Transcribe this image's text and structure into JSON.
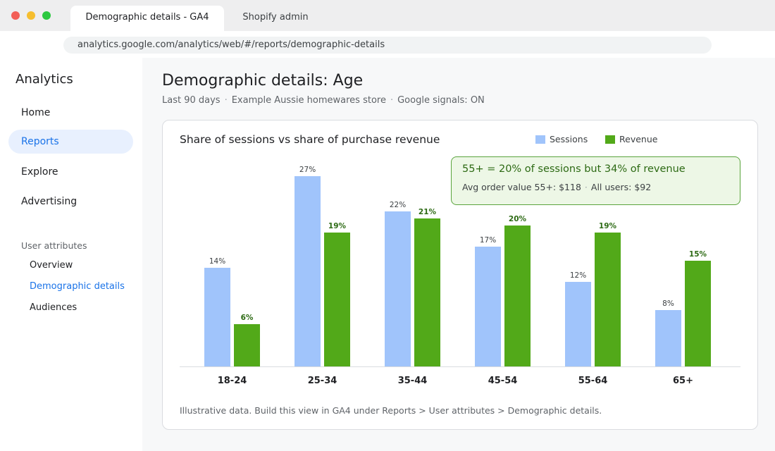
{
  "browser": {
    "tabs": [
      {
        "label": "Demographic details - GA4",
        "active": true
      },
      {
        "label": "Shopify admin",
        "active": false
      }
    ],
    "url": "analytics.google.com/analytics/web/#/reports/demographic-details"
  },
  "sidebar": {
    "brand": "Analytics",
    "nav": [
      {
        "label": "Home"
      },
      {
        "label": "Reports",
        "selected": true
      },
      {
        "label": "Explore"
      },
      {
        "label": "Advertising"
      }
    ],
    "section_title": "User attributes",
    "subnav": [
      {
        "label": "Overview"
      },
      {
        "label": "Demographic details",
        "selected": true
      },
      {
        "label": "Audiences"
      }
    ]
  },
  "page": {
    "title": "Demographic details: Age",
    "meta": [
      "Last 90 days",
      "Example Aussie homewares store",
      "Google signals: ON"
    ],
    "separator": "·"
  },
  "card": {
    "title": "Share of sessions vs share of purchase revenue",
    "callout": {
      "headline": "55+  = 20% of sessions but 34% of revenue",
      "detail_1": "Avg order value 55+: $118",
      "detail_2": "All users: $92"
    },
    "footnote": "Illustrative data. Build this view in GA4 under Reports > User attributes > Demographic details."
  },
  "colors": {
    "sessions": "#a0c4fb",
    "revenue": "#52a919",
    "revenue_label": "#2d6a14",
    "accent": "#1a73e8"
  },
  "chart_data": {
    "type": "bar",
    "categories": [
      "18-24",
      "25-34",
      "35-44",
      "45-54",
      "55-64",
      "65+"
    ],
    "series": [
      {
        "name": "Sessions",
        "values": [
          14,
          27,
          22,
          17,
          12,
          8
        ],
        "labels": [
          "14%",
          "27%",
          "22%",
          "17%",
          "12%",
          "8%"
        ]
      },
      {
        "name": "Revenue",
        "values": [
          6,
          19,
          21,
          20,
          19,
          15
        ],
        "labels": [
          "6%",
          "19%",
          "21%",
          "20%",
          "19%",
          "15%"
        ]
      }
    ],
    "ylim": [
      0,
      27
    ],
    "grid": false,
    "legend_position": "top-right"
  }
}
